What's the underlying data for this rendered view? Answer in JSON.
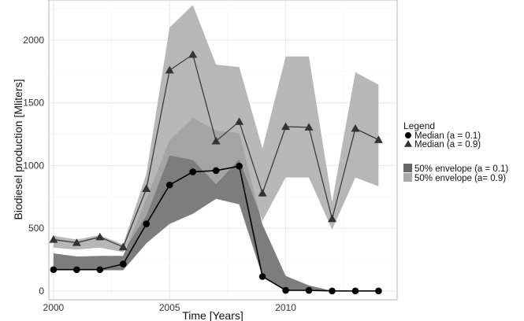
{
  "chart_data": {
    "type": "line",
    "title": "",
    "xlabel": "Time [Years]",
    "ylabel": "Biodiesel production [Mliters]",
    "xlim": [
      1999.8,
      2014.8
    ],
    "ylim": [
      -70,
      2320
    ],
    "xticks": [
      2000,
      2005,
      2010
    ],
    "yticks": [
      0,
      500,
      1000,
      1500,
      2000
    ],
    "grid": true,
    "legend_position": "right",
    "legend_title": "Legend",
    "x": [
      2000,
      2001,
      2002,
      2003,
      2004,
      2005,
      2006,
      2007,
      2008,
      2009,
      2010,
      2011,
      2012,
      2013,
      2014
    ],
    "series": [
      {
        "name": "Median (a = 0.1)",
        "marker": "circle",
        "color": "#000000",
        "values": [
          170,
          170,
          170,
          215,
          535,
          845,
          950,
          960,
          995,
          115,
          5,
          5,
          0,
          0,
          0
        ]
      },
      {
        "name": "Median (a = 0.9)",
        "marker": "triangle",
        "color": "#333333",
        "values": [
          410,
          385,
          430,
          350,
          815,
          1760,
          1885,
          1195,
          1350,
          780,
          1310,
          1305,
          575,
          1295,
          1205
        ]
      }
    ],
    "envelopes": [
      {
        "name": "50% envelope (a = 0.1)",
        "color": "#666666",
        "lower": [
          170,
          165,
          165,
          165,
          380,
          535,
          615,
          735,
          690,
          115,
          5,
          0,
          0,
          0,
          0
        ],
        "upper": [
          300,
          275,
          280,
          280,
          735,
          1200,
          1380,
          1280,
          1260,
          530,
          120,
          45,
          0,
          0,
          0
        ]
      },
      {
        "name": "50% envelope (a= 0.9)",
        "color": "#aaaaaa",
        "lower": [
          345,
          330,
          345,
          310,
          600,
          1080,
          1045,
          850,
          1050,
          560,
          905,
          905,
          490,
          905,
          835
        ],
        "upper": [
          440,
          410,
          445,
          370,
          935,
          2100,
          2280,
          1805,
          1785,
          1135,
          1870,
          1870,
          710,
          1745,
          1645
        ]
      }
    ]
  }
}
